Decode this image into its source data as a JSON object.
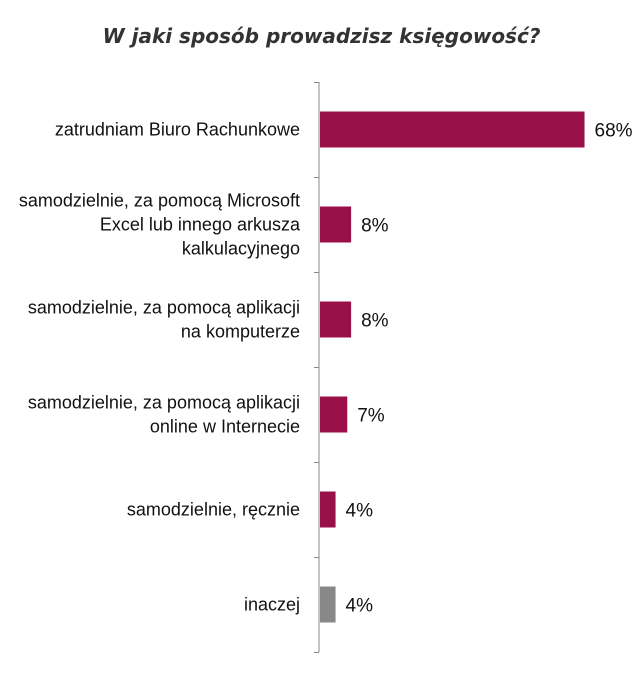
{
  "chart_data": {
    "type": "bar",
    "orientation": "horizontal",
    "title": "W jaki sposób prowadzisz księgowość?",
    "categories": [
      "zatrudniam Biuro Rachunkowe",
      "samodzielnie, za pomocą Microsoft Excel lub innego arkusza kalkulacyjnego",
      "samodzielnie, za pomocą aplikacji na komputerze",
      "samodzielnie, za pomocą aplikacji online w Internecie",
      "samodzielnie, ręcznie",
      "inaczej"
    ],
    "category_lines": [
      [
        "zatrudniam Biuro Rachunkowe"
      ],
      [
        "samodzielnie, za pomocą Microsoft",
        "Excel lub innego arkusza",
        "kalkulacyjnego"
      ],
      [
        "samodzielnie, za pomocą aplikacji",
        "na komputerze"
      ],
      [
        "samodzielnie, za pomocą aplikacji",
        "online w Internecie"
      ],
      [
        "samodzielnie, ręcznie"
      ],
      [
        "inaczej"
      ]
    ],
    "values": [
      68,
      8,
      8,
      7,
      4,
      4
    ],
    "value_labels": [
      "68%",
      "8%",
      "8%",
      "7%",
      "4%",
      "4%"
    ],
    "unit": "%",
    "xlim": [
      0,
      100
    ],
    "grid": false,
    "legend": "none",
    "colors": [
      "#990f47",
      "#990f47",
      "#990f47",
      "#990f47",
      "#990f47",
      "#888888"
    ],
    "axis_color": "#888888"
  }
}
